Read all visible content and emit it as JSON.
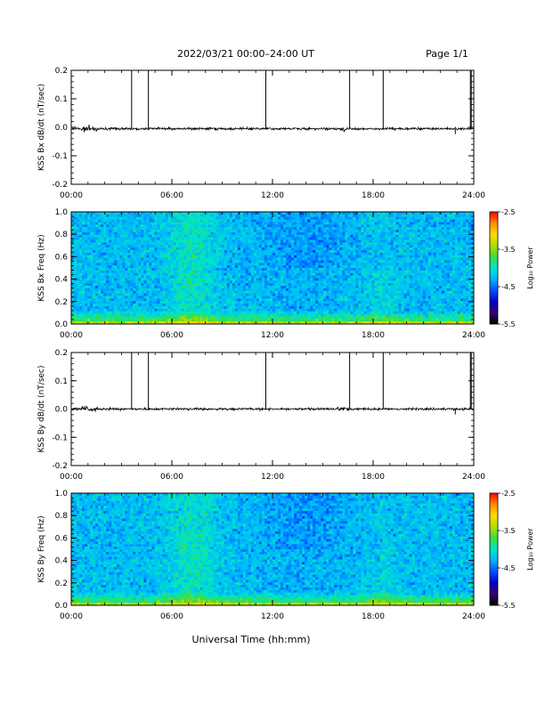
{
  "header": {
    "title": "2022/03/21  00:00–24:00 UT",
    "page": "Page 1/1"
  },
  "footer": {
    "xlabel": "Universal Time (hh:mm)"
  },
  "colors": {
    "trace": "#000000",
    "colormap": [
      "#000000",
      "#3a006e",
      "#0000c8",
      "#0050ff",
      "#00b4ff",
      "#00e6c8",
      "#3cdc3c",
      "#b4dc00",
      "#ffdc00",
      "#ff8c00",
      "#ff0000"
    ]
  },
  "chart_data": [
    {
      "type": "line",
      "name": "bx-timeseries",
      "ylabel": "KSS Bx dB/dt (nT/sec)",
      "xlim": [
        0,
        24
      ],
      "ylim": [
        -0.2,
        0.2
      ],
      "xticks": [
        "00:00",
        "06:00",
        "12:00",
        "18:00",
        "24:00"
      ],
      "yticks": [
        "0.2",
        "0.1",
        "0.0",
        "-0.1",
        "-0.2"
      ],
      "baseline": -0.005,
      "spikes_hours": [
        3.6,
        4.6,
        11.6,
        16.6,
        18.6,
        23.8,
        23.85
      ]
    },
    {
      "type": "heatmap",
      "name": "bx-spectrogram",
      "ylabel": "KSS Bx Freq (Hz)",
      "xlim": [
        0,
        24
      ],
      "ylim": [
        0,
        1.0
      ],
      "xticks": [
        "00:00",
        "06:00",
        "12:00",
        "18:00",
        "24:00"
      ],
      "yticks": [
        "1.0",
        "0.8",
        "0.6",
        "0.4",
        "0.2",
        "0.0"
      ],
      "colorbar": {
        "label": "Log₁₀ Power",
        "ticks": [
          "-2.5",
          "-3.5",
          "-4.5",
          "-5.5"
        ],
        "range": [
          -5.5,
          -2.5
        ]
      }
    },
    {
      "type": "line",
      "name": "by-timeseries",
      "ylabel": "KSS By dB/dt (nT/sec)",
      "xlim": [
        0,
        24
      ],
      "ylim": [
        -0.2,
        0.2
      ],
      "xticks": [
        "00:00",
        "06:00",
        "12:00",
        "18:00",
        "24:00"
      ],
      "yticks": [
        "0.2",
        "0.1",
        "0.0",
        "-0.1",
        "-0.2"
      ],
      "baseline": 0.0,
      "spikes_hours": [
        3.6,
        4.6,
        11.6,
        16.6,
        18.6,
        23.8,
        23.85
      ]
    },
    {
      "type": "heatmap",
      "name": "by-spectrogram",
      "ylabel": "KSS By Freq (Hz)",
      "xlim": [
        0,
        24
      ],
      "ylim": [
        0,
        1.0
      ],
      "xticks": [
        "00:00",
        "06:00",
        "12:00",
        "18:00",
        "24:00"
      ],
      "yticks": [
        "1.0",
        "0.8",
        "0.6",
        "0.4",
        "0.2",
        "0.0"
      ],
      "colorbar": {
        "label": "Log₁₀ Power",
        "ticks": [
          "-2.5",
          "-3.5",
          "-4.5",
          "-5.5"
        ],
        "range": [
          -5.5,
          -2.5
        ]
      }
    }
  ]
}
